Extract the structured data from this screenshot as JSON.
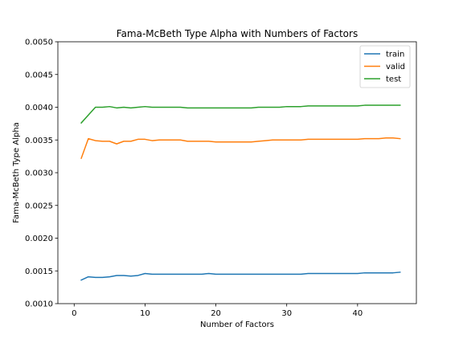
{
  "chart_data": {
    "type": "line",
    "title": "Fama-McBeth Type Alpha with Numbers of Factors",
    "xlabel": "Number of Factors",
    "ylabel": "Fama-McBeth Type Alpha",
    "xlim": [
      -2.3,
      48.3
    ],
    "ylim": [
      0.001,
      0.005
    ],
    "xticks": [
      0,
      10,
      20,
      30,
      40
    ],
    "xtick_labels": [
      "0",
      "10",
      "20",
      "30",
      "40"
    ],
    "yticks": [
      0.001,
      0.0015,
      0.002,
      0.0025,
      0.003,
      0.0035,
      0.004,
      0.0045,
      0.005
    ],
    "ytick_labels": [
      "0.0010",
      "0.0015",
      "0.0020",
      "0.0025",
      "0.0030",
      "0.0035",
      "0.0040",
      "0.0045",
      "0.0050"
    ],
    "grid": false,
    "legend_position": "top-right",
    "x": [
      1,
      2,
      3,
      4,
      5,
      6,
      7,
      8,
      9,
      10,
      11,
      12,
      13,
      14,
      15,
      16,
      17,
      18,
      19,
      20,
      21,
      22,
      23,
      24,
      25,
      26,
      27,
      28,
      29,
      30,
      31,
      32,
      33,
      34,
      35,
      36,
      37,
      38,
      39,
      40,
      41,
      42,
      43,
      44,
      45,
      46
    ],
    "series": [
      {
        "name": "train",
        "color": "#1f77b4",
        "values": [
          0.00136,
          0.00141,
          0.0014,
          0.0014,
          0.00141,
          0.00143,
          0.00143,
          0.00142,
          0.00143,
          0.00146,
          0.00145,
          0.00145,
          0.00145,
          0.00145,
          0.00145,
          0.00145,
          0.00145,
          0.00145,
          0.00146,
          0.00145,
          0.00145,
          0.00145,
          0.00145,
          0.00145,
          0.00145,
          0.00145,
          0.00145,
          0.00145,
          0.00145,
          0.00145,
          0.00145,
          0.00145,
          0.00146,
          0.00146,
          0.00146,
          0.00146,
          0.00146,
          0.00146,
          0.00146,
          0.00146,
          0.00147,
          0.00147,
          0.00147,
          0.00147,
          0.00147,
          0.00148
        ]
      },
      {
        "name": "valid",
        "color": "#ff7f0e",
        "values": [
          0.00322,
          0.00352,
          0.00349,
          0.00348,
          0.00348,
          0.00344,
          0.00348,
          0.00348,
          0.00351,
          0.00351,
          0.00349,
          0.0035,
          0.0035,
          0.0035,
          0.0035,
          0.00348,
          0.00348,
          0.00348,
          0.00348,
          0.00347,
          0.00347,
          0.00347,
          0.00347,
          0.00347,
          0.00347,
          0.00348,
          0.00349,
          0.0035,
          0.0035,
          0.0035,
          0.0035,
          0.0035,
          0.00351,
          0.00351,
          0.00351,
          0.00351,
          0.00351,
          0.00351,
          0.00351,
          0.00351,
          0.00352,
          0.00352,
          0.00352,
          0.00353,
          0.00353,
          0.00352
        ]
      },
      {
        "name": "test",
        "color": "#2ca02c",
        "values": [
          0.00376,
          0.00388,
          0.004,
          0.004,
          0.00401,
          0.00399,
          0.004,
          0.00399,
          0.004,
          0.00401,
          0.004,
          0.004,
          0.004,
          0.004,
          0.004,
          0.00399,
          0.00399,
          0.00399,
          0.00399,
          0.00399,
          0.00399,
          0.00399,
          0.00399,
          0.00399,
          0.00399,
          0.004,
          0.004,
          0.004,
          0.004,
          0.00401,
          0.00401,
          0.00401,
          0.00402,
          0.00402,
          0.00402,
          0.00402,
          0.00402,
          0.00402,
          0.00402,
          0.00402,
          0.00403,
          0.00403,
          0.00403,
          0.00403,
          0.00403,
          0.00403
        ]
      }
    ]
  }
}
